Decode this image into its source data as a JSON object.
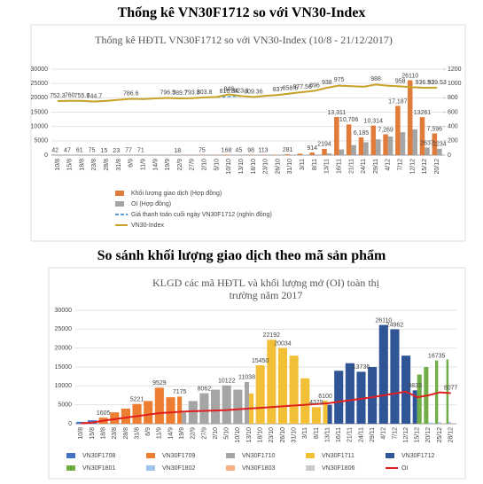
{
  "headings": [
    "Thống kê VN30F1712 so với VN30-Index",
    "So sánh khối lượng giao dịch theo mã sản phẩm"
  ],
  "chart_data": [
    {
      "type": "combo",
      "title": "Thống kê HĐTL VN30F1712 so với VN30-Index (10/8 - 21/12/2017)",
      "categories": [
        "10/8",
        "15/8",
        "18/8",
        "23/8",
        "28/8",
        "31/8",
        "6/9",
        "11/9",
        "14/9",
        "19/9",
        "22/9",
        "27/9",
        "2/10",
        "5/10",
        "10/10",
        "13/10",
        "18/10",
        "23/10",
        "26/10",
        "31/10",
        "3/11",
        "8/11",
        "13/11",
        "16/11",
        "21/11",
        "24/11",
        "29/11",
        "4/12",
        "7/12",
        "12/12",
        "15/12",
        "20/12"
      ],
      "ylim": [
        0,
        30000
      ],
      "yticks": [
        0,
        5000,
        10000,
        15000,
        20000,
        25000,
        30000
      ],
      "y2lim": [
        0,
        1200
      ],
      "y2ticks": [
        0,
        200,
        400,
        600,
        800,
        1000,
        1200
      ],
      "grid": true,
      "series": [
        {
          "name": "Khối lượng giao dịch (Hợp đồng)",
          "type": "bar",
          "color": "#e07b39",
          "values": [
            42,
            47,
            61,
            75,
            15,
            23,
            77,
            71,
            18,
            20,
            18,
            75,
            75,
            90,
            168,
            45,
            98,
            113,
            120,
            281,
            500,
            914,
            2194,
            13311,
            10706,
            6185,
            10314,
            7269,
            17187,
            26110,
            13261,
            7596
          ],
          "value_labels": [
            "42",
            "47",
            "61",
            "75",
            "15",
            "23",
            "77",
            "71",
            null,
            null,
            "18",
            null,
            "75",
            null,
            "168",
            "45",
            "98",
            "113",
            null,
            "281",
            null,
            "914",
            "2194",
            "13,311",
            "10,706",
            "6,185",
            "10,314",
            "7,269",
            "17,187",
            "26110",
            "13261",
            "7,596"
          ]
        },
        {
          "name": "OI (Hợp đồng)",
          "type": "bar",
          "color": "#a5a5a5",
          "values": [
            0,
            0,
            0,
            0,
            0,
            0,
            0,
            0,
            0,
            0,
            0,
            0,
            0,
            0,
            0,
            0,
            0,
            0,
            0,
            0,
            50,
            200,
            600,
            2000,
            3500,
            4500,
            5500,
            6500,
            8000,
            9000,
            2637,
            2234
          ],
          "value_labels": [
            null,
            null,
            null,
            null,
            null,
            null,
            null,
            null,
            null,
            null,
            null,
            null,
            null,
            null,
            null,
            null,
            null,
            null,
            null,
            null,
            null,
            null,
            null,
            null,
            null,
            null,
            null,
            null,
            null,
            null,
            "2637",
            "2234"
          ]
        },
        {
          "name": "Giá thanh toán cuối ngày VN30F1712 (nghìn đồng)",
          "type": "line",
          "axis": "y2",
          "color": "#5b9bd5",
          "dashed": true,
          "values": [
            752.3,
            760,
            755.6,
            744.7,
            755,
            770,
            786.6,
            780,
            790,
            796.5,
            789.7,
            793.3,
            803.8,
            810,
            816.84,
            823.1,
            809.36,
            825,
            837,
            858.6,
            877.56,
            896,
            938,
            975,
            965,
            950,
            988,
            970,
            958,
            945,
            936.53,
            939.53
          ],
          "value_labels": [
            "752.3",
            "760",
            "755.6",
            "744.7",
            null,
            null,
            "786.6",
            null,
            null,
            "796.5",
            "789.7",
            "793.3",
            "803.8",
            null,
            "816.84",
            "823.1",
            "809.36",
            null,
            "837",
            "858.6",
            "877.56",
            "896",
            "938",
            "975",
            null,
            null,
            "988",
            null,
            "958",
            null,
            "936.53",
            "939.53"
          ]
        },
        {
          "name": "VN30-Index",
          "type": "line",
          "axis": "y2",
          "color": "#c9a227",
          "dashed": false,
          "values": [
            755,
            758,
            757,
            748,
            758,
            772,
            785,
            782,
            792,
            798,
            792,
            795,
            805,
            812,
            848,
            825,
            812,
            828,
            840,
            860,
            880,
            898,
            940,
            970,
            962,
            955,
            985,
            968,
            960,
            948,
            940,
            942
          ],
          "value_labels": [
            null,
            null,
            null,
            null,
            null,
            null,
            null,
            null,
            null,
            null,
            null,
            null,
            null,
            null,
            "848",
            null,
            null,
            null,
            null,
            null,
            null,
            null,
            null,
            null,
            null,
            null,
            null,
            null,
            null,
            null,
            null,
            null
          ]
        }
      ]
    },
    {
      "type": "bar",
      "title": "KLGD các mã HĐTL và khối lượng mở (OI) toàn thị trường năm 2017",
      "categories": [
        "10/8",
        "15/8",
        "18/8",
        "23/8",
        "28/8",
        "31/8",
        "6/9",
        "11/9",
        "14/9",
        "19/9",
        "22/9",
        "27/9",
        "2/10",
        "5/10",
        "10/10",
        "13/10",
        "18/10",
        "23/10",
        "26/10",
        "31/10",
        "3/11",
        "8/11",
        "13/11",
        "16/11",
        "21/11",
        "24/11",
        "29/11",
        "4/12",
        "7/12",
        "12/12",
        "15/12",
        "20/12",
        "25/12",
        "28/12"
      ],
      "ylim": [
        0,
        30000
      ],
      "yticks": [
        0,
        5000,
        10000,
        15000,
        20000,
        25000,
        30000
      ],
      "grid": true,
      "series": [
        {
          "name": "VN30F1708",
          "type": "bar",
          "color": "#4472c4",
          "values": [
            500,
            900,
            null,
            null,
            null,
            null,
            null,
            null,
            null,
            null,
            null,
            null,
            null,
            null,
            null,
            null,
            null,
            null,
            null,
            null,
            null,
            null,
            null,
            null,
            null,
            null,
            null,
            null,
            null,
            null,
            null,
            null,
            null,
            null
          ]
        },
        {
          "name": "VN30F1709",
          "type": "bar",
          "color": "#ed7d31",
          "values": [
            null,
            null,
            1605,
            3000,
            4000,
            5221,
            6000,
            9529,
            7000,
            7175,
            null,
            null,
            null,
            null,
            null,
            null,
            null,
            null,
            null,
            null,
            null,
            null,
            null,
            null,
            null,
            null,
            null,
            null,
            null,
            null,
            null,
            null,
            null,
            null
          ],
          "value_labels": [
            null,
            null,
            "1605",
            null,
            null,
            "5221",
            null,
            "9529",
            null,
            "7175",
            null,
            null,
            null,
            null,
            null,
            null,
            null,
            null,
            null,
            null,
            null,
            null,
            null,
            null,
            null,
            null,
            null,
            null,
            null,
            null,
            null,
            null,
            null,
            null
          ]
        },
        {
          "name": "VN30F1710",
          "type": "bar",
          "color": "#a5a5a5",
          "values": [
            null,
            null,
            null,
            null,
            null,
            null,
            null,
            null,
            null,
            3000,
            6000,
            8062,
            9000,
            10122,
            9000,
            11038,
            null,
            null,
            null,
            null,
            null,
            null,
            null,
            null,
            null,
            null,
            null,
            null,
            null,
            null,
            null,
            null,
            null,
            null
          ],
          "value_labels": [
            null,
            null,
            null,
            null,
            null,
            null,
            null,
            null,
            null,
            null,
            null,
            "8062",
            null,
            "10122",
            null,
            "11038",
            null,
            null,
            null,
            null,
            null,
            null,
            null,
            null,
            null,
            null,
            null,
            null,
            null,
            null,
            null,
            null,
            null,
            null
          ]
        },
        {
          "name": "VN30F1711",
          "type": "bar",
          "color": "#f2c037",
          "values": [
            null,
            null,
            null,
            null,
            null,
            null,
            null,
            null,
            null,
            null,
            null,
            null,
            null,
            null,
            null,
            8000,
            15450,
            22192,
            20034,
            18000,
            12000,
            4379,
            6100,
            null,
            null,
            null,
            null,
            null,
            null,
            null,
            null,
            null,
            null,
            null
          ],
          "value_labels": [
            null,
            null,
            null,
            null,
            null,
            null,
            null,
            null,
            null,
            null,
            null,
            null,
            null,
            null,
            null,
            null,
            "15450",
            "22192",
            "20034",
            null,
            null,
            "4379",
            "6100",
            null,
            null,
            null,
            null,
            null,
            null,
            null,
            null,
            null,
            null,
            null
          ]
        },
        {
          "name": "VN30F1712",
          "type": "bar",
          "color": "#2f5597",
          "values": [
            null,
            null,
            null,
            null,
            null,
            null,
            null,
            null,
            null,
            null,
            null,
            null,
            null,
            null,
            null,
            null,
            null,
            null,
            null,
            null,
            null,
            null,
            5000,
            14000,
            16000,
            13736,
            15000,
            26110,
            24962,
            18000,
            8833,
            null,
            null,
            null
          ],
          "value_labels": [
            null,
            null,
            null,
            null,
            null,
            null,
            null,
            null,
            null,
            null,
            null,
            null,
            null,
            null,
            null,
            null,
            null,
            null,
            null,
            null,
            null,
            null,
            null,
            null,
            null,
            "13736",
            null,
            "26110",
            "24962",
            null,
            "8833",
            null,
            null,
            null
          ]
        },
        {
          "name": "VN30F1801",
          "type": "bar",
          "color": "#70ad47",
          "values": [
            null,
            null,
            null,
            null,
            null,
            null,
            null,
            null,
            null,
            null,
            null,
            null,
            null,
            null,
            null,
            null,
            null,
            null,
            null,
            null,
            null,
            null,
            null,
            null,
            null,
            null,
            null,
            null,
            null,
            null,
            13000,
            15000,
            16735,
            17000
          ],
          "value_labels": [
            null,
            null,
            null,
            null,
            null,
            null,
            null,
            null,
            null,
            null,
            null,
            null,
            null,
            null,
            null,
            null,
            null,
            null,
            null,
            null,
            null,
            null,
            null,
            null,
            null,
            null,
            null,
            null,
            null,
            null,
            null,
            null,
            "16735",
            null
          ]
        },
        {
          "name": "VN30F1802",
          "type": "bar",
          "color": "#9dc3e6",
          "values": [
            null,
            null,
            null,
            null,
            null,
            null,
            null,
            null,
            null,
            null,
            null,
            null,
            null,
            null,
            null,
            null,
            null,
            null,
            null,
            null,
            null,
            null,
            null,
            null,
            null,
            null,
            null,
            null,
            null,
            null,
            null,
            300,
            400,
            500
          ]
        },
        {
          "name": "VN30F1803",
          "type": "bar",
          "color": "#f4b183",
          "values": [
            null,
            null,
            null,
            null,
            null,
            null,
            null,
            null,
            null,
            null,
            null,
            null,
            null,
            null,
            null,
            null,
            null,
            null,
            null,
            null,
            null,
            null,
            null,
            null,
            null,
            null,
            null,
            null,
            null,
            null,
            null,
            null,
            100,
            150
          ]
        },
        {
          "name": "VN30F1806",
          "type": "bar",
          "color": "#c9c9c9",
          "values": [
            null,
            null,
            null,
            null,
            null,
            null,
            null,
            null,
            null,
            null,
            null,
            null,
            null,
            null,
            null,
            null,
            null,
            null,
            null,
            null,
            null,
            null,
            null,
            null,
            null,
            null,
            null,
            null,
            null,
            null,
            null,
            null,
            null,
            50
          ]
        },
        {
          "name": "OI",
          "type": "line",
          "color": "#e02020",
          "dashed": false,
          "values": [
            100,
            300,
            800,
            1200,
            1600,
            2000,
            2400,
            2800,
            3000,
            3200,
            3300,
            3400,
            3500,
            3600,
            3800,
            4000,
            4200,
            4400,
            4600,
            4800,
            5000,
            5200,
            5400,
            5800,
            6200,
            6600,
            7000,
            7500,
            8000,
            8500,
            7000,
            7500,
            8300,
            8077
          ],
          "value_labels": [
            null,
            null,
            null,
            null,
            null,
            null,
            null,
            null,
            null,
            null,
            null,
            null,
            null,
            null,
            null,
            null,
            null,
            null,
            null,
            null,
            null,
            null,
            null,
            null,
            null,
            null,
            null,
            null,
            null,
            null,
            null,
            null,
            null,
            "8077"
          ]
        }
      ]
    }
  ]
}
